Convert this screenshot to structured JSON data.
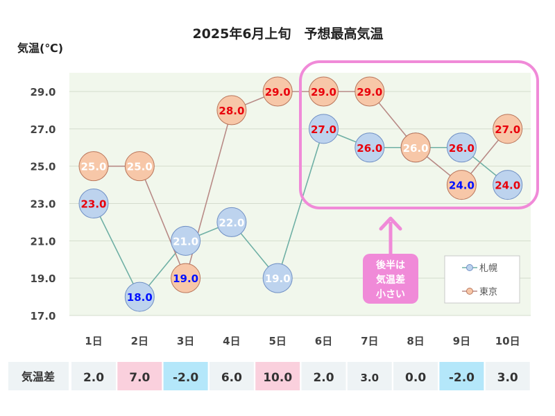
{
  "chart_data": {
    "type": "line",
    "title": "2025年6月上旬　予想最高気温",
    "ylabel": "気温(℃)",
    "ylim": [
      17,
      30
    ],
    "yticks": [
      "17.0",
      "19.0",
      "21.0",
      "23.0",
      "25.0",
      "27.0",
      "29.0"
    ],
    "categories": [
      "1日",
      "2日",
      "3日",
      "4日",
      "5日",
      "6日",
      "7日",
      "8日",
      "9日",
      "10日"
    ],
    "grid": true,
    "legend_position": "bottom-right",
    "series": [
      {
        "name": "札幌",
        "values": [
          23.0,
          18.0,
          21.0,
          22.0,
          19.0,
          27.0,
          26.0,
          26.0,
          26.0,
          24.0
        ],
        "labels": [
          "23.0",
          "18.0",
          "21.0",
          "22.0",
          "19.0",
          "27.0",
          "26.0",
          "26.0",
          "26.0",
          "24.0"
        ],
        "line_color": "#6fb0a5",
        "marker_fill": "#bdd3ee",
        "marker_stroke": "#6f8fc4",
        "label_colors": [
          "#e8000b",
          "#0010ff",
          "#ffffff",
          "#ffffff",
          "#ffffff",
          "#e8000b",
          "#e8000b",
          "#ffffff",
          "#e8000b",
          "#e8000b"
        ]
      },
      {
        "name": "東京",
        "values": [
          25.0,
          25.0,
          19.0,
          28.0,
          29.0,
          29.0,
          29.0,
          26.0,
          24.0,
          27.0
        ],
        "labels": [
          "25.0",
          "25.0",
          "19.0",
          "28.0",
          "29.0",
          "29.0",
          "29.0",
          "26.0",
          "24.0",
          "27.0"
        ],
        "line_color": "#b88a86",
        "marker_fill": "#f7c7a8",
        "marker_stroke": "#b9755a",
        "label_colors": [
          "#ffffff",
          "#ffffff",
          "#0010ff",
          "#e8000b",
          "#e8000b",
          "#e8000b",
          "#e8000b",
          "#ffffff",
          "#0010ff",
          "#e8000b"
        ]
      }
    ],
    "draw_order": [
      [
        0,
        0
      ],
      [
        1,
        0
      ],
      [
        0,
        1
      ],
      [
        1,
        1
      ],
      [
        1,
        2
      ],
      [
        0,
        2
      ],
      [
        0,
        3
      ],
      [
        1,
        3
      ],
      [
        0,
        4
      ],
      [
        1,
        4
      ],
      [
        0,
        5
      ],
      [
        1,
        5
      ],
      [
        1,
        6
      ],
      [
        0,
        6
      ],
      [
        0,
        7
      ],
      [
        1,
        7
      ],
      [
        1,
        8
      ],
      [
        0,
        8
      ],
      [
        1,
        9
      ],
      [
        0,
        9
      ]
    ],
    "difference_row": {
      "label": "気温差",
      "values": [
        "2.0",
        "7.0",
        "-2.0",
        "6.0",
        "10.0",
        "2.0",
        "3.0",
        "0.0",
        "-2.0",
        "3.0"
      ],
      "highlight": [
        "none",
        "pink",
        "blue",
        "none",
        "pink",
        "none",
        "none",
        "none",
        "blue",
        "none"
      ]
    },
    "annotation": {
      "lines": [
        "後半は",
        "気温差",
        "小さい"
      ],
      "color": "#f08ad8"
    },
    "colors": {
      "plot_background": "#f1f7ec",
      "pink_highlight": "#fad0dd",
      "blue_highlight": "#b4e7fa",
      "row_background": "#eef3f5"
    }
  }
}
